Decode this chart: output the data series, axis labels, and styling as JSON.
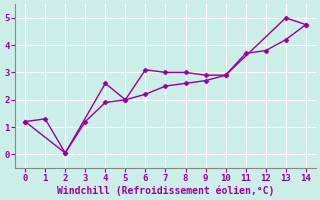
{
  "line1_x": [
    0,
    1,
    2,
    3,
    4,
    5,
    6,
    7,
    8,
    9,
    10,
    11,
    12,
    13,
    14
  ],
  "line1_y": [
    1.2,
    1.3,
    0.05,
    1.2,
    1.9,
    2.0,
    2.2,
    2.5,
    2.6,
    2.7,
    2.9,
    3.7,
    3.8,
    4.2,
    4.75
  ],
  "line2_x": [
    0,
    2,
    4,
    5,
    6,
    7,
    8,
    9,
    10,
    13,
    14
  ],
  "line2_y": [
    1.2,
    0.05,
    2.6,
    2.0,
    3.1,
    3.0,
    3.0,
    2.9,
    2.9,
    5.0,
    4.75
  ],
  "color": "#990099",
  "bg_color": "#cceee8",
  "grid_color": "#aaddcc",
  "border_color": "#888888",
  "xlabel": "Windchill (Refroidissement éolien,°C)",
  "xlim": [
    -0.5,
    14.5
  ],
  "ylim": [
    -0.5,
    5.5
  ],
  "xticks": [
    0,
    1,
    2,
    3,
    4,
    5,
    6,
    7,
    8,
    9,
    10,
    11,
    12,
    13,
    14
  ],
  "yticks": [
    0,
    1,
    2,
    3,
    4,
    5
  ],
  "marker": "D",
  "markersize": 2.5,
  "linewidth": 1.0,
  "tick_fontsize": 6.5,
  "xlabel_fontsize": 7
}
